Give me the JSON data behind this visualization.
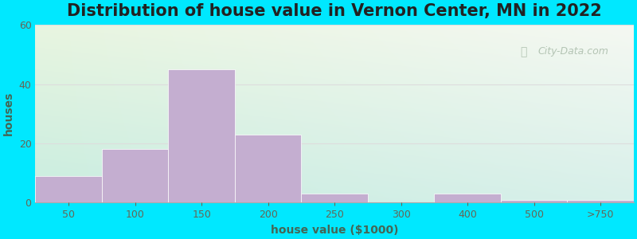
{
  "title": "Distribution of house value in Vernon Center, MN in 2022",
  "xlabel": "house value ($1000)",
  "ylabel": "houses",
  "tick_labels": [
    "50",
    "100",
    "150",
    "200",
    "250",
    "300",
    "400",
    "500",
    ">750"
  ],
  "bar_values": [
    9,
    18,
    45,
    23,
    3,
    0,
    3,
    1,
    1
  ],
  "bar_color": "#c4aed0",
  "bar_edge_color": "#c4aed0",
  "ylim": [
    0,
    60
  ],
  "yticks": [
    0,
    20,
    40,
    60
  ],
  "background_outer": "#00e8ff",
  "bg_top_left": "#e8f5e0",
  "bg_top_right": "#f5f8f2",
  "bg_bottom_left": "#c8ede0",
  "bg_bottom_right": "#d8f0ea",
  "title_fontsize": 15,
  "axis_label_fontsize": 10,
  "tick_fontsize": 9,
  "watermark_text": "City-Data.com",
  "watermark_color": "#aabcaa",
  "grid_color": "#dddddd"
}
